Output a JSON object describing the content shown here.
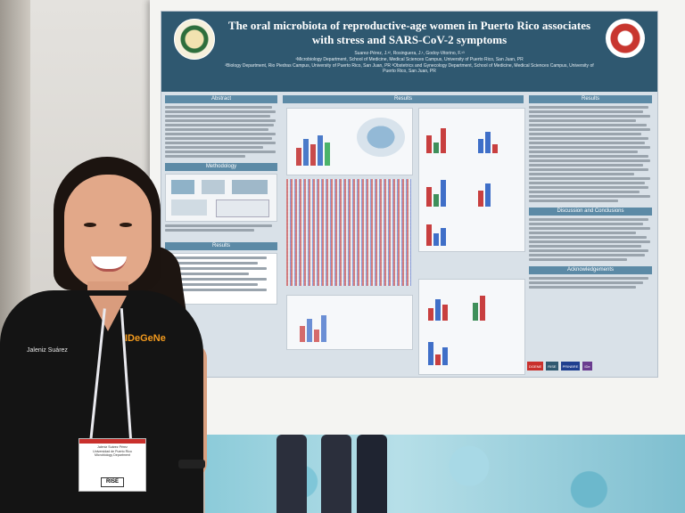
{
  "poster": {
    "title_line1": "The oral microbiota of reproductive-age women in Puerto Rico associates",
    "title_line2": "with stress and SARS-CoV-2 symptoms",
    "authors": "Suarez-Pérez, J.¹², Rosinguera, J.¹, Godoy-Vitorino, F.¹³",
    "affiliation1": "¹Microbiology Department, School of Medicine, Medical Sciences Campus, University of Puerto Rico, San Juan, PR",
    "affiliation2": "²Biology Department, Rio Piedras Campus, University of Puerto Rico, San Juan, PR  ³Obstetrics and Gynecology Department, School of Medicine, Medical Sciences Campus, University of Puerto Rico, San Juan, PR",
    "sections": {
      "abstract": "Abstract",
      "methodology": "Methodology",
      "results_left": "Results",
      "results_center": "Results",
      "results_right": "Results",
      "discussion": "Discussion and Conclusions",
      "acknowledgements": "Acknowledgements"
    },
    "logos": [
      "DGENE",
      "RISE",
      "PRINBRE",
      "IDe"
    ]
  },
  "person": {
    "shirt_name": "Jaleniz Suárez",
    "shirt_logo": "IDeGeNe",
    "badge_line1": "Jaleniz Suárez Pérez",
    "badge_line2": "Universidad de Puerto Rico",
    "badge_line3": "Microbiology Department",
    "badge_brand": "RISE"
  },
  "colors": {
    "banner": "#2f5870",
    "section_head": "#5c8aa6",
    "shirt": "#141414",
    "badge_accent": "#c9302c"
  }
}
